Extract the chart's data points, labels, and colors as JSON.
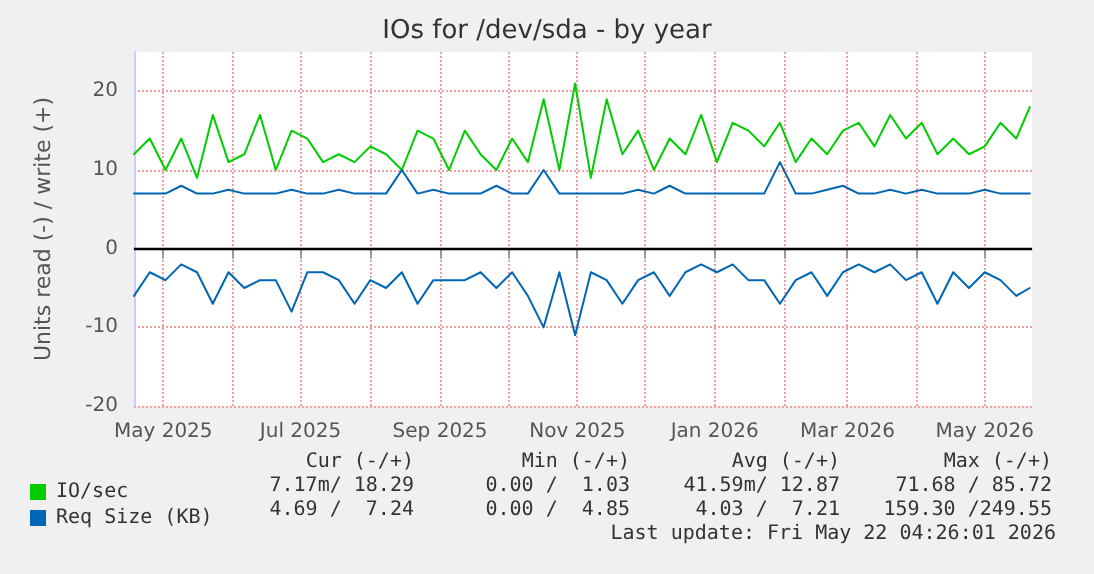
{
  "chart_data": {
    "type": "line",
    "title": "IOs for /dev/sda - by year",
    "ylabel": "Units read (-) / write (+)",
    "x": [
      "2025-04-18",
      "2025-04-25",
      "2025-05-02",
      "2025-05-09",
      "2025-05-16",
      "2025-05-23",
      "2025-05-30",
      "2025-06-06",
      "2025-06-13",
      "2025-06-20",
      "2025-06-27",
      "2025-07-04",
      "2025-07-11",
      "2025-07-18",
      "2025-07-25",
      "2025-08-01",
      "2025-08-08",
      "2025-08-15",
      "2025-08-22",
      "2025-08-29",
      "2025-09-05",
      "2025-09-12",
      "2025-09-19",
      "2025-09-26",
      "2025-10-03",
      "2025-10-10",
      "2025-10-17",
      "2025-10-24",
      "2025-10-31",
      "2025-11-07",
      "2025-11-14",
      "2025-11-21",
      "2025-11-28",
      "2025-12-05",
      "2025-12-12",
      "2025-12-19",
      "2025-12-26",
      "2026-01-02",
      "2026-01-09",
      "2026-01-16",
      "2026-01-23",
      "2026-01-30",
      "2026-02-06",
      "2026-02-13",
      "2026-02-20",
      "2026-02-27",
      "2026-03-06",
      "2026-03-13",
      "2026-03-20",
      "2026-03-27",
      "2026-04-03",
      "2026-04-10",
      "2026-04-17",
      "2026-04-24",
      "2026-05-01",
      "2026-05-08",
      "2026-05-15",
      "2026-05-21"
    ],
    "series": [
      {
        "name": "IO/sec",
        "color": "#00cc00",
        "values": [
          12,
          14,
          10,
          14,
          9,
          17,
          11,
          12,
          17,
          10,
          15,
          14,
          11,
          12,
          11,
          13,
          12,
          10,
          15,
          14,
          10,
          15,
          12,
          10,
          14,
          11,
          19,
          10,
          21,
          9,
          19,
          12,
          15,
          10,
          14,
          12,
          17,
          11,
          16,
          15,
          13,
          16,
          11,
          14,
          12,
          15,
          16,
          13,
          17,
          14,
          16,
          12,
          14,
          12,
          13,
          16,
          14,
          18
        ]
      },
      {
        "name": "Req Size (KB)",
        "color": "#0066b3",
        "values": [
          7,
          7,
          7,
          8,
          7,
          7,
          7.5,
          7,
          7,
          7,
          7.5,
          7,
          7,
          7.5,
          7,
          7,
          7,
          10,
          7,
          7.5,
          7,
          7,
          7,
          8,
          7,
          7,
          10,
          7,
          7,
          7,
          7,
          7,
          7.5,
          7,
          8,
          7,
          7,
          7,
          7,
          7,
          7,
          11,
          7,
          7,
          7.5,
          8,
          7,
          7,
          7.5,
          7,
          7.5,
          7,
          7,
          7,
          7.5,
          7,
          7,
          7
        ]
      },
      {
        "color": "#0066b3",
        "values": [
          -6,
          -3,
          -4,
          -2,
          -3,
          -7,
          -3,
          -5,
          -4,
          -4,
          -8,
          -3,
          -3,
          -4,
          -7,
          -4,
          -5,
          -3,
          -7,
          -4,
          -4,
          -4,
          -3,
          -5,
          -3,
          -6,
          -10,
          -3,
          -11,
          -3,
          -4,
          -7,
          -4,
          -3,
          -6,
          -3,
          -2,
          -3,
          -2,
          -4,
          -4,
          -7,
          -4,
          -3,
          -6,
          -3,
          -2,
          -3,
          -2,
          -4,
          -3,
          -7,
          -3,
          -5,
          -3,
          -4,
          -6,
          -5
        ]
      }
    ],
    "xlim": [
      "2025-04-18",
      "2026-05-22"
    ],
    "xticks": [
      {
        "value": "2025-05-01",
        "label": "May 2025"
      },
      {
        "value": "2025-06-01",
        "label": null
      },
      {
        "value": "2025-07-01",
        "label": "Jul 2025"
      },
      {
        "value": "2025-08-01",
        "label": null
      },
      {
        "value": "2025-09-01",
        "label": "Sep 2025"
      },
      {
        "value": "2025-10-01",
        "label": null
      },
      {
        "value": "2025-11-01",
        "label": "Nov 2025"
      },
      {
        "value": "2025-12-01",
        "label": null
      },
      {
        "value": "2026-01-01",
        "label": "Jan 2026"
      },
      {
        "value": "2026-02-01",
        "label": null
      },
      {
        "value": "2026-03-01",
        "label": "Mar 2026"
      },
      {
        "value": "2026-04-01",
        "label": null
      },
      {
        "value": "2026-05-01",
        "label": "May 2026"
      }
    ],
    "ylim": [
      -20,
      25
    ],
    "yticks": [
      -20,
      -10,
      0,
      10,
      20
    ],
    "ref_lines": [
      {
        "axis": "y",
        "value": 0,
        "color": "#000000"
      }
    ],
    "grid": true,
    "legend": "bottom left",
    "marker": "none",
    "line_style": "solid",
    "annotations": [
      "Cur (-/+)",
      "Min (-/+)",
      "Avg (-/+)",
      "Max (-/+)",
      "7.17m/ 18.29",
      "0.00 /  1.03",
      "41.59m/ 12.87",
      "71.68 / 85.72",
      "4.69 /  7.24",
      "0.00 /  4.85",
      "4.03 /  7.21",
      "159.30 /249.55",
      "Last update: Fri May 22 04:26:01 2026"
    ]
  }
}
